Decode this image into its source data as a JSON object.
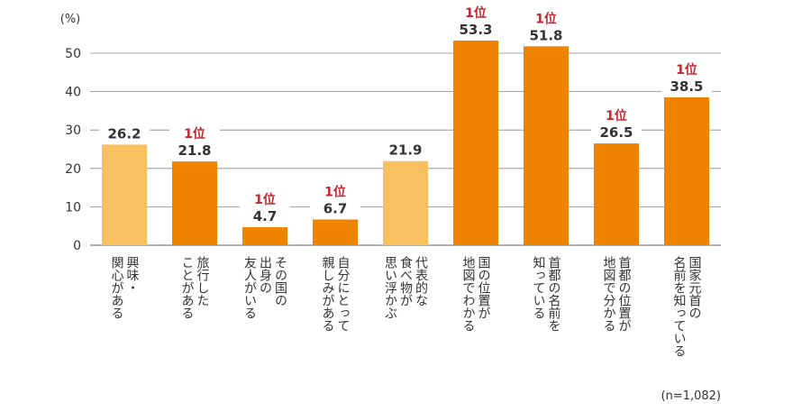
{
  "chart_data": {
    "type": "bar",
    "unit_label": "(%)",
    "note": "(n=1,082)",
    "ylim": [
      0,
      50
    ],
    "yticks": [
      0,
      10,
      20,
      30,
      40,
      50
    ],
    "grid": true,
    "categories": [
      [
        "興味・",
        "関心がある"
      ],
      [
        "旅行した",
        "ことがある"
      ],
      [
        "その国の",
        "出身の",
        "友人がいる"
      ],
      [
        "自分にとって",
        "親しみがある"
      ],
      [
        "代表的な",
        "食べ物が",
        "思い浮かぶ"
      ],
      [
        "国の位置が",
        "地図でわかる"
      ],
      [
        "首都の名前を",
        "知っている"
      ],
      [
        "首都の位置が",
        "地図で分かる"
      ],
      [
        "国家元首の",
        "名前を知っている"
      ]
    ],
    "values": [
      26.2,
      21.8,
      4.7,
      6.7,
      21.9,
      53.3,
      51.8,
      26.5,
      38.5
    ],
    "value_labels": [
      "26.2",
      "21.8",
      "4.7",
      "6.7",
      "21.9",
      "53.3",
      "51.8",
      "26.5",
      "38.5"
    ],
    "rank_labels": [
      "",
      "1位",
      "1位",
      "1位",
      "",
      "1位",
      "1位",
      "1位",
      "1位"
    ],
    "bar_colors": [
      "#f8c05f",
      "#ee8300",
      "#ee8300",
      "#ee8300",
      "#f8c05f",
      "#ee8300",
      "#ee8300",
      "#ee8300",
      "#ee8300"
    ],
    "colors": {
      "light": "#f8c05f",
      "dark": "#ee8300",
      "rank": "#c0272d",
      "grid": "#888888"
    }
  }
}
